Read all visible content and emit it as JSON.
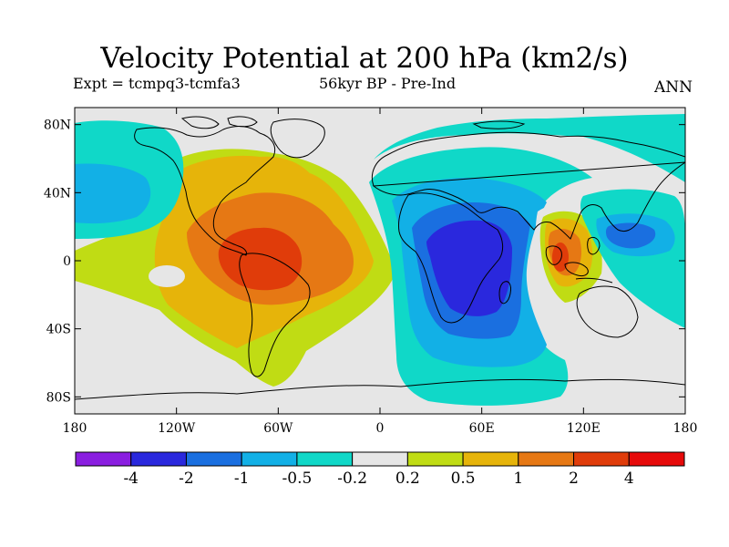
{
  "title": "Velocity Potential at 200 hPa (km2/s)",
  "experiment": "Expt = tcmpq3-tcmfa3",
  "period": "56kyr BP - Pre-Ind",
  "season": "ANN",
  "map": {
    "projection": "equirectangular",
    "lon_range": [
      -180,
      180
    ],
    "lat_range": [
      -90,
      90
    ],
    "coastlines": true,
    "lat_ticks": [
      {
        "value": 80,
        "label": "80N"
      },
      {
        "value": 40,
        "label": "40N"
      },
      {
        "value": 0,
        "label": "0"
      },
      {
        "value": -40,
        "label": "40S"
      },
      {
        "value": -80,
        "label": "80S"
      }
    ],
    "lon_ticks": [
      {
        "value": -180,
        "label": "180"
      },
      {
        "value": -120,
        "label": "120W"
      },
      {
        "value": -60,
        "label": "60W"
      },
      {
        "value": 0,
        "label": "0"
      },
      {
        "value": 60,
        "label": "60E"
      },
      {
        "value": 120,
        "label": "120E"
      },
      {
        "value": 180,
        "label": "180"
      }
    ],
    "background_color": "#e6e6e6"
  },
  "colorbar": {
    "colors": [
      "#8a1ee0",
      "#2a28dd",
      "#1a6fe0",
      "#12b0e6",
      "#10d8c8",
      "#e6e6e6",
      "#c0dc14",
      "#e6b40a",
      "#e67814",
      "#e03c0a",
      "#e60a0a"
    ],
    "labels": [
      "-4",
      "-2",
      "-1",
      "-0.5",
      "-0.2",
      "0.2",
      "0.5",
      "1",
      "2",
      "4"
    ]
  },
  "features": [
    {
      "name": "positive-americas",
      "lon": -55,
      "lat": 5,
      "peak_level": 9
    },
    {
      "name": "negative-africa-indian-ocean",
      "lon": 45,
      "lat": 0,
      "peak_level": 1
    },
    {
      "name": "positive-maritime-continent",
      "lon": 108,
      "lat": 0,
      "peak_level": 9
    },
    {
      "name": "negative-west-pacific",
      "lon": 150,
      "lat": 15,
      "peak_level": 2
    },
    {
      "name": "negative-north-pacific",
      "lon": -165,
      "lat": 40,
      "peak_level": 3
    }
  ]
}
